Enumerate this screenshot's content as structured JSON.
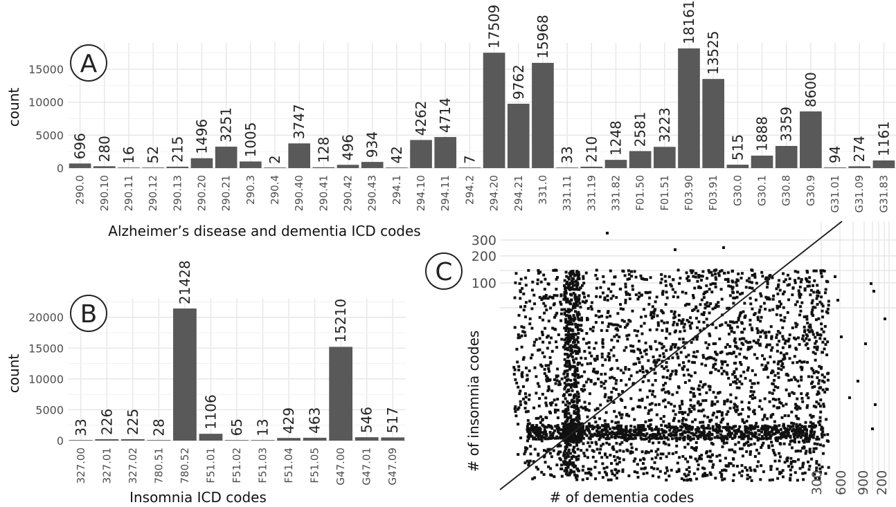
{
  "panels": {
    "A": "A",
    "B": "B",
    "C": "C"
  },
  "chart_data": [
    {
      "panel": "A",
      "type": "bar",
      "xlabel": "Alzheimer’s disease and dementia ICD codes",
      "ylabel": "count",
      "ylim": [
        0,
        19000
      ],
      "yticks": [
        0,
        5000,
        10000,
        15000
      ],
      "grid": true,
      "categories": [
        "290.0",
        "290.10",
        "290.11",
        "290.12",
        "290.13",
        "290.20",
        "290.21",
        "290.3",
        "290.4",
        "290.40",
        "290.41",
        "290.42",
        "290.43",
        "294.1",
        "294.10",
        "294.11",
        "294.2",
        "294.20",
        "294.21",
        "331.0",
        "331.11",
        "331.19",
        "331.82",
        "F01.50",
        "F01.51",
        "F03.90",
        "F03.91",
        "G30.0",
        "G30.1",
        "G30.8",
        "G30.9",
        "G31.01",
        "G31.09",
        "G31.83"
      ],
      "values": [
        696,
        280,
        16,
        52,
        215,
        1496,
        3251,
        1005,
        2,
        3747,
        128,
        496,
        934,
        42,
        4262,
        4714,
        7,
        17509,
        9762,
        15968,
        33,
        210,
        1248,
        2581,
        3223,
        18161,
        13525,
        515,
        1888,
        3359,
        8600,
        94,
        274,
        1161
      ]
    },
    {
      "panel": "B",
      "type": "bar",
      "xlabel": "Insomnia ICD codes",
      "ylabel": "count",
      "ylim": [
        0,
        23000
      ],
      "yticks": [
        0,
        5000,
        10000,
        15000,
        20000
      ],
      "grid": true,
      "categories": [
        "327.00",
        "327.01",
        "327.02",
        "780.51",
        "780.52",
        "F51.01",
        "F51.02",
        "F51.03",
        "F51.04",
        "F51.05",
        "G47.00",
        "G47.01",
        "G47.09"
      ],
      "values": [
        33,
        226,
        225,
        28,
        21428,
        1106,
        65,
        13,
        429,
        463,
        15210,
        546,
        517
      ]
    },
    {
      "panel": "C",
      "type": "scatter",
      "xlabel": "# of dementia codes",
      "ylabel": "# of insomnia codes",
      "x_scale": "log",
      "y_scale": "log",
      "xlim": [
        1,
        240
      ],
      "ylim": [
        1,
        400
      ],
      "xticks": [
        300,
        600,
        900,
        200
      ],
      "yticks": [
        100,
        200,
        300
      ],
      "grid": true,
      "reference_line": "y = x",
      "points_note": ""
    }
  ]
}
